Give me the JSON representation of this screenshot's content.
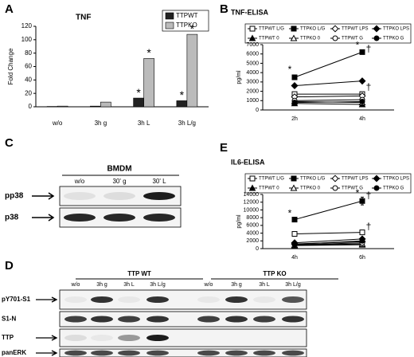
{
  "chart_data": [
    {
      "type": "bar",
      "panel": "A",
      "title": "TNF",
      "y_label": "Fold Change",
      "categories": [
        "w/o",
        "3h g",
        "3h L",
        "3h L/g"
      ],
      "series": [
        {
          "name": "TTPWT",
          "color": "#222222",
          "values": [
            0.5,
            1,
            13,
            9
          ],
          "annotations": [
            null,
            null,
            "*",
            "*"
          ]
        },
        {
          "name": "TTPKO",
          "color": "#bbbbbb",
          "values": [
            1,
            7,
            72,
            108
          ],
          "annotations": [
            null,
            null,
            "*",
            "*"
          ]
        }
      ],
      "ylim": [
        0,
        120
      ],
      "yticks": [
        0,
        20,
        40,
        60,
        80,
        100,
        120
      ],
      "legend": "top-right"
    },
    {
      "type": "line",
      "panel": "B",
      "title": "TNF-ELISA",
      "y_label": "pg/ml",
      "categories": [
        "2h",
        "4h"
      ],
      "series": [
        {
          "name": "TTPWT L/G",
          "color": "#000000",
          "marker": "square",
          "filled": false,
          "values": [
            1700,
            1700
          ]
        },
        {
          "name": "TTPKO L/G",
          "color": "#000000",
          "marker": "square",
          "filled": true,
          "values": [
            3500,
            6200
          ]
        },
        {
          "name": "TTPWT LPS",
          "color": "#000000",
          "marker": "diamond",
          "filled": false,
          "values": [
            1400,
            1500
          ]
        },
        {
          "name": "TTPKO LPS",
          "color": "#000000",
          "marker": "diamond",
          "filled": true,
          "values": [
            2600,
            3100
          ]
        },
        {
          "name": "TTPWT 0",
          "color": "#000000",
          "marker": "triangle",
          "filled": true,
          "values": [
            700,
            600
          ]
        },
        {
          "name": "TTPKO 0",
          "color": "#000000",
          "marker": "triangle",
          "filled": false,
          "values": [
            900,
            800
          ]
        },
        {
          "name": "TTPWT G",
          "color": "#000000",
          "marker": "circle",
          "filled": false,
          "values": [
            1000,
            1100
          ]
        },
        {
          "name": "TTPKO G",
          "color": "#000000",
          "marker": "circle",
          "filled": true,
          "values": [
            800,
            900
          ]
        }
      ],
      "annotations": [
        {
          "text": "*",
          "x": "2h",
          "y": 4300
        },
        {
          "text": "*",
          "x": "4h",
          "y": 6900
        },
        {
          "text": "†",
          "x": "4h",
          "y": 6500
        },
        {
          "text": "†",
          "x": "4h",
          "y": 2400
        }
      ],
      "ylim": [
        0,
        7000
      ],
      "yticks": [
        0,
        1000,
        2000,
        3000,
        4000,
        5000,
        6000,
        7000
      ]
    },
    {
      "type": "line",
      "panel": "E",
      "title": "IL6-ELISA",
      "y_label": "pg/ml",
      "categories": [
        "4h",
        "6h"
      ],
      "series": [
        {
          "name": "TTPWT L/G",
          "color": "#000000",
          "marker": "square",
          "filled": false,
          "values": [
            3800,
            4200
          ]
        },
        {
          "name": "TTPKO L/G",
          "color": "#000000",
          "marker": "square",
          "filled": true,
          "values": [
            7500,
            12300
          ],
          "errors": [
            200,
            1000
          ]
        },
        {
          "name": "TTPWT LPS",
          "color": "#000000",
          "marker": "diamond",
          "filled": false,
          "values": [
            1200,
            1800
          ]
        },
        {
          "name": "TTPKO LPS",
          "color": "#000000",
          "marker": "diamond",
          "filled": true,
          "values": [
            1500,
            2500
          ]
        },
        {
          "name": "TTPWT 0",
          "color": "#000000",
          "marker": "triangle",
          "filled": true,
          "values": [
            800,
            1000
          ]
        },
        {
          "name": "TTPKO 0",
          "color": "#000000",
          "marker": "triangle",
          "filled": false,
          "values": [
            900,
            1200
          ]
        },
        {
          "name": "TTPWT G",
          "color": "#000000",
          "marker": "circle",
          "filled": false,
          "values": [
            1000,
            1500
          ]
        },
        {
          "name": "TTPKO G",
          "color": "#000000",
          "marker": "circle",
          "filled": true,
          "values": [
            1100,
            2000
          ]
        }
      ],
      "annotations": [
        {
          "text": "*",
          "x": "4h",
          "y": 9000
        },
        {
          "text": "*",
          "x": "6h",
          "y": 14200
        },
        {
          "text": "†",
          "x": "6h",
          "y": 13600
        },
        {
          "text": "†",
          "x": "6h",
          "y": 5600
        }
      ],
      "ylim": [
        0,
        14000
      ],
      "yticks": [
        0,
        2000,
        4000,
        6000,
        8000,
        10000,
        12000,
        14000
      ]
    }
  ],
  "blot_c": {
    "panel": "C",
    "title": "BMDM",
    "lanes": [
      "w/o",
      "30' g",
      "30' L"
    ],
    "rows": [
      "pp38",
      "p38"
    ]
  },
  "blot_d": {
    "panel": "D",
    "groups": [
      "TTP WT",
      "TTP KO"
    ],
    "lanes": [
      "w/o",
      "3h g",
      "3h L",
      "3h L/g",
      "w/o",
      "3h g",
      "3h L",
      "3h L/g"
    ],
    "rows": [
      "pY701-S1",
      "S1-N",
      "TTP",
      "panERK"
    ]
  }
}
